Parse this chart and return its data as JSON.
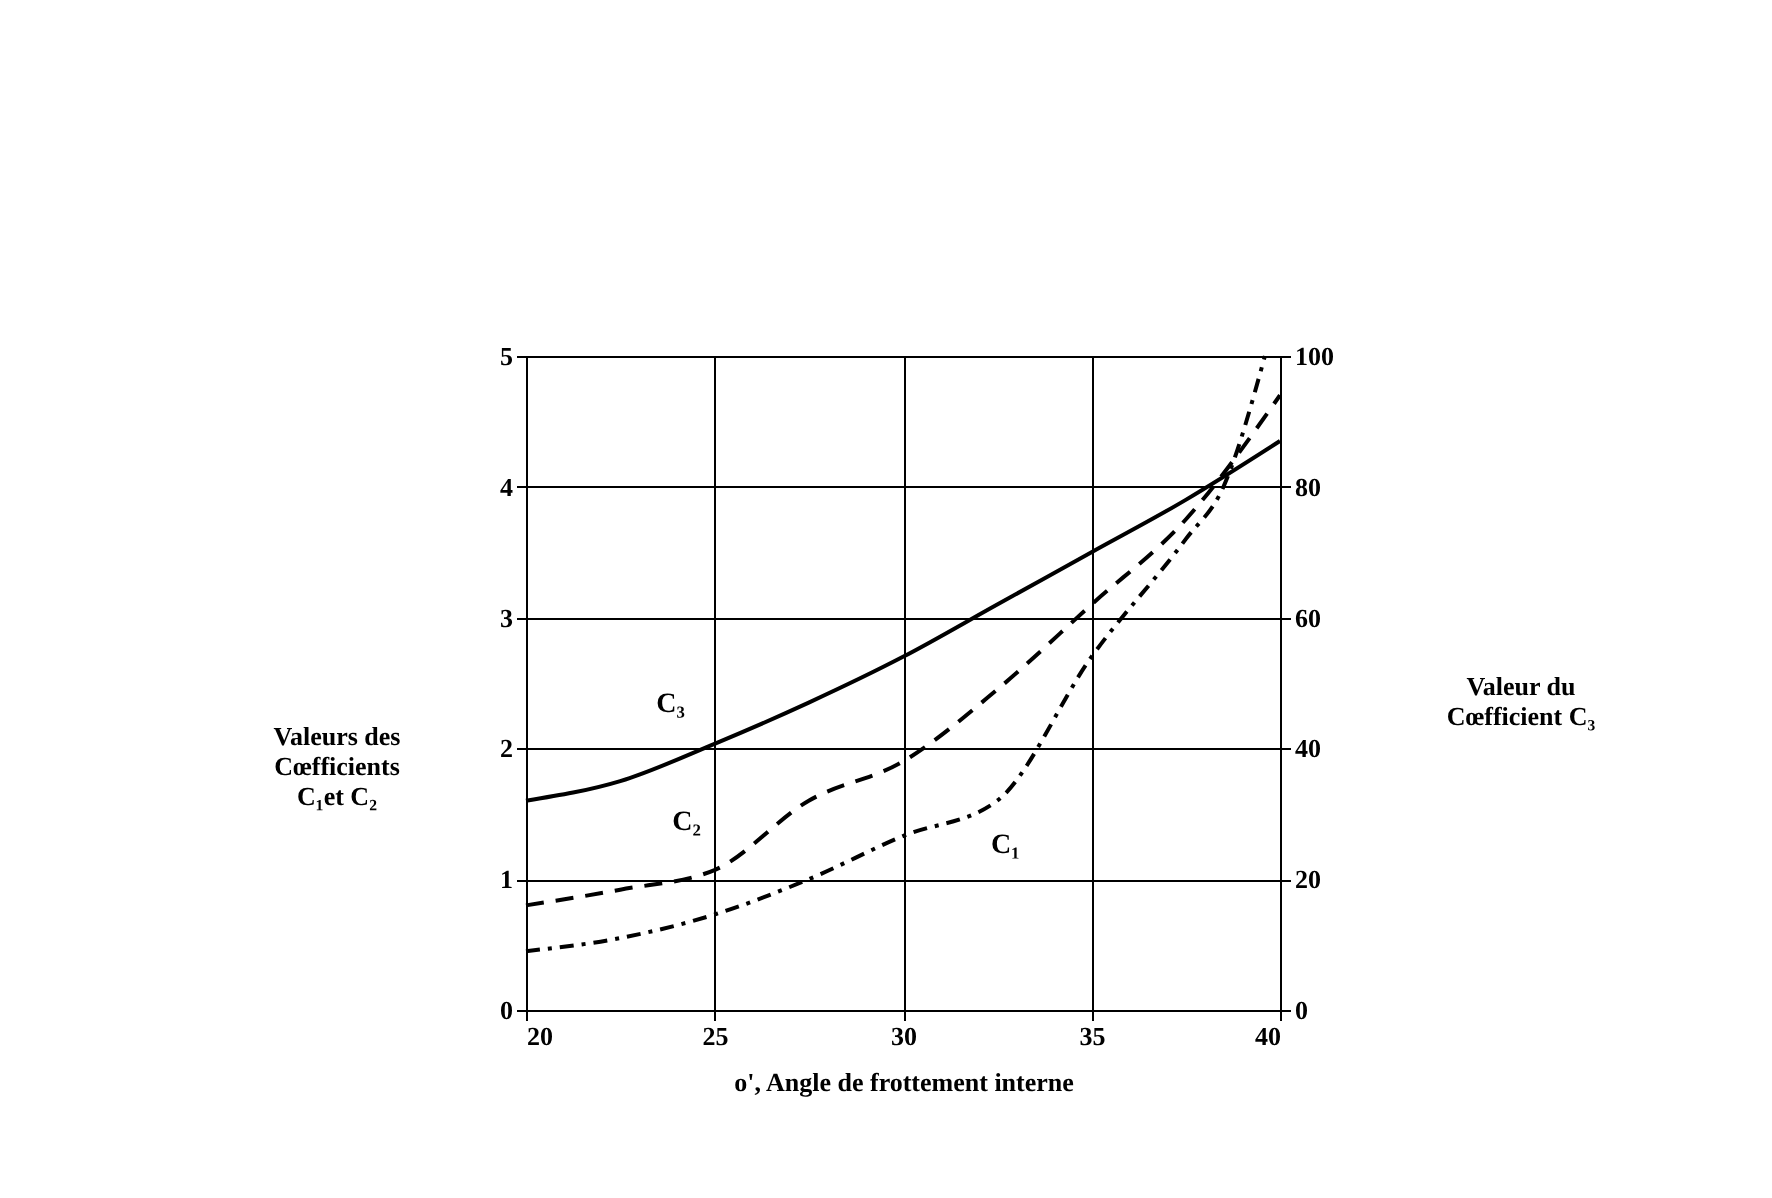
{
  "chart_data": {
    "type": "line",
    "xlabel": "o', Angle de frottement interne",
    "ylabel": "Valeurs des\nCœfficients\nC₁et C₂",
    "y2label": "Valeur du\nCœfficient C₃",
    "series": [
      {
        "name": "C₃",
        "color": "#000000",
        "axis": "y2",
        "line_style": "solid",
        "x": [
          20,
          22.5,
          25,
          27.5,
          30,
          32.5,
          35,
          37.5,
          40
        ],
        "values": [
          32,
          35,
          40.7,
          47,
          54,
          62,
          70,
          78,
          87
        ]
      },
      {
        "name": "C₂",
        "color": "#000000",
        "line_style": "dashed",
        "x": [
          20,
          22.5,
          25,
          27.5,
          30,
          32.5,
          35,
          37.5,
          40
        ],
        "values": [
          0.8,
          0.92,
          1.07,
          1.6,
          1.9,
          2.45,
          3.1,
          3.75,
          4.7
        ]
      },
      {
        "name": "C₁",
        "color": "#000000",
        "line_style": "dotted",
        "x": [
          20,
          22.5,
          25,
          27.5,
          30,
          32.5,
          35,
          37.5,
          38.5,
          39.6
        ],
        "values": [
          0.45,
          0.55,
          0.73,
          1.0,
          1.33,
          1.6,
          2.7,
          3.6,
          4.0,
          5.0
        ]
      }
    ],
    "xlim": [
      20,
      40
    ],
    "xticks": [
      20,
      25,
      30,
      35,
      40
    ],
    "ylim": [
      0,
      5
    ],
    "yticks": [
      0,
      1,
      2,
      3,
      4,
      5
    ],
    "y2lim": [
      0,
      100
    ],
    "y2ticks": [
      0,
      20,
      40,
      60,
      80,
      100
    ],
    "grid": true,
    "marker": "none"
  }
}
